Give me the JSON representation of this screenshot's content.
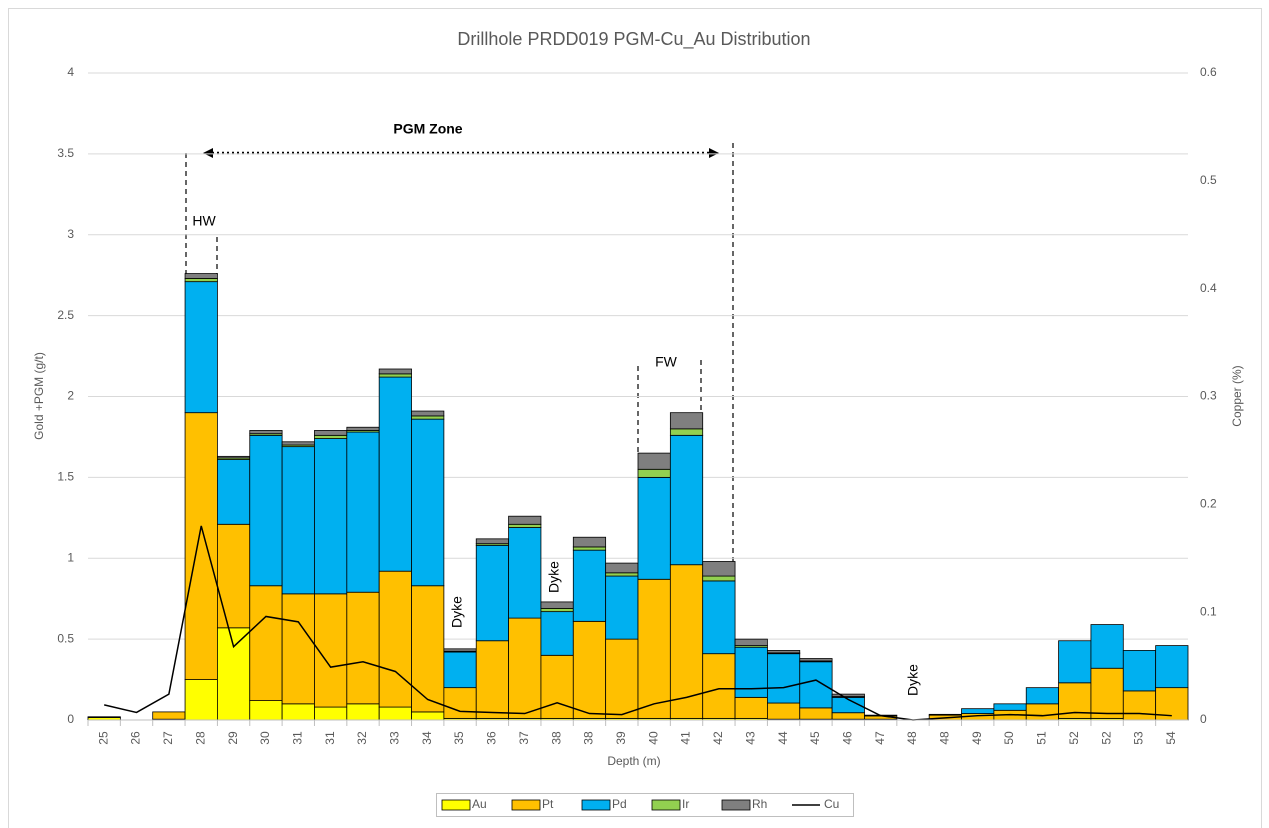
{
  "chart_data": {
    "type": "bar",
    "stacked": true,
    "title": "Drillhole PRDD019 PGM-Cu_Au Distribution",
    "x_label": "Depth (m)",
    "y_label": "Gold +PGM (g/t)",
    "y2_label": "Copper (%)",
    "categories": [
      "25",
      "26",
      "27",
      "28",
      "29",
      "30",
      "31",
      "31",
      "32",
      "33",
      "34",
      "35",
      "36",
      "37",
      "38",
      "38",
      "39",
      "40",
      "41",
      "42",
      "43",
      "44",
      "45",
      "46",
      "47",
      "48",
      "48",
      "49",
      "50",
      "51",
      "52",
      "52",
      "53",
      "54"
    ],
    "series": [
      {
        "name": "Au",
        "color": "#ffff00",
        "values": [
          0.015,
          0,
          0.005,
          0.25,
          0.57,
          0.12,
          0.1,
          0.08,
          0.1,
          0.08,
          0.05,
          0.01,
          0.01,
          0.01,
          0.01,
          0.01,
          0.01,
          0.01,
          0.01,
          0.01,
          0.01,
          0.005,
          0.005,
          0.005,
          0.005,
          0,
          0,
          0,
          0,
          0,
          0.01,
          0.01,
          0,
          0
        ]
      },
      {
        "name": "Pt",
        "color": "#ffc000",
        "values": [
          0.005,
          0,
          0.045,
          1.65,
          0.64,
          0.71,
          0.68,
          0.7,
          0.69,
          0.84,
          0.78,
          0.19,
          0.48,
          0.62,
          0.39,
          0.6,
          0.49,
          0.86,
          0.95,
          0.4,
          0.13,
          0.1,
          0.07,
          0.04,
          0.02,
          0,
          0.03,
          0.04,
          0.06,
          0.1,
          0.22,
          0.31,
          0.18,
          0.2
        ]
      },
      {
        "name": "Pd",
        "color": "#00b0f0",
        "values": [
          0,
          0,
          0,
          0.81,
          0.4,
          0.93,
          0.91,
          0.96,
          0.99,
          1.2,
          1.03,
          0.22,
          0.59,
          0.56,
          0.27,
          0.44,
          0.39,
          0.63,
          0.8,
          0.45,
          0.31,
          0.305,
          0.285,
          0.095,
          0.005,
          0,
          0,
          0.03,
          0.04,
          0.1,
          0.26,
          0.27,
          0.25,
          0.26
        ]
      },
      {
        "name": "Ir",
        "color": "#92d050",
        "values": [
          0,
          0,
          0,
          0.02,
          0.01,
          0.01,
          0.01,
          0.02,
          0.01,
          0.02,
          0.02,
          0.005,
          0.01,
          0.02,
          0.02,
          0.02,
          0.02,
          0.05,
          0.04,
          0.03,
          0.01,
          0.005,
          0.005,
          0.005,
          0,
          0,
          0,
          0,
          0,
          0,
          0,
          0,
          0,
          0
        ]
      },
      {
        "name": "Rh",
        "color": "#7f7f7f",
        "values": [
          0,
          0,
          0,
          0.03,
          0.01,
          0.02,
          0.02,
          0.03,
          0.02,
          0.03,
          0.03,
          0.015,
          0.03,
          0.05,
          0.04,
          0.06,
          0.06,
          0.1,
          0.1,
          0.09,
          0.04,
          0.015,
          0.015,
          0.015,
          0,
          0,
          0.005,
          0,
          0,
          0,
          0,
          0,
          0,
          0
        ]
      },
      {
        "name": "Cu",
        "color": "#000000",
        "type": "line",
        "axis": "y2",
        "values": [
          0.014,
          0.007,
          0.024,
          0.18,
          0.068,
          0.096,
          0.091,
          0.049,
          0.054,
          0.045,
          0.019,
          0.008,
          0.007,
          0.006,
          0.016,
          0.006,
          0.005,
          0.015,
          0.021,
          0.029,
          0.029,
          0.03,
          0.037,
          0.019,
          0.004,
          0,
          0.002,
          0.004,
          0.005,
          0.004,
          0.007,
          0.006,
          0.006,
          0.004
        ]
      }
    ],
    "ylim": [
      0,
      4
    ],
    "yticks": [
      0,
      0.5,
      1,
      1.5,
      2,
      2.5,
      3,
      3.5,
      4
    ],
    "y2lim": [
      0,
      0.6
    ],
    "y2ticks": [
      0,
      0.1,
      0.2,
      0.3,
      0.4,
      0.5,
      0.6
    ],
    "grid": true,
    "legend": "bottom",
    "annotations": [
      "PGM Zone",
      "HW",
      "FW",
      "Dyke",
      "Dyke",
      "Dyke"
    ]
  }
}
